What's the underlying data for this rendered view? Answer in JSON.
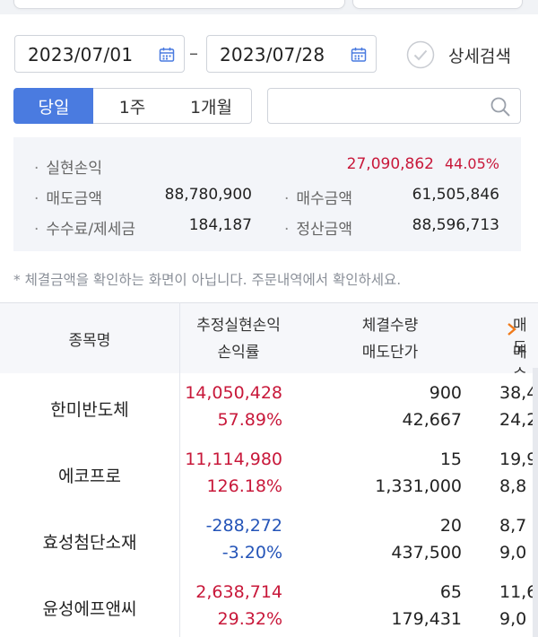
{
  "date_range": {
    "start": "2023/07/01",
    "separator": "–",
    "end": "2023/07/28"
  },
  "detail_search": {
    "label": "상세검색"
  },
  "period_tabs": [
    {
      "label": "당일",
      "active": true
    },
    {
      "label": "1주",
      "active": false
    },
    {
      "label": "1개월",
      "active": false
    }
  ],
  "search": {
    "placeholder": ""
  },
  "summary": {
    "realized_pnl": {
      "label": "실현손익",
      "value": "27,090,862",
      "rate": "44.05%"
    },
    "sell_amount": {
      "label": "매도금액",
      "value": "88,780,900"
    },
    "buy_amount": {
      "label": "매수금액",
      "value": "61,505,846"
    },
    "fee_tax": {
      "label": "수수료/제세금",
      "value": "184,187"
    },
    "settlement": {
      "label": "정산금액",
      "value": "88,596,713"
    }
  },
  "note": "* 체결금액을 확인하는 화면이 아닙니다. 주문내역에서 확인하세요.",
  "table": {
    "headers": {
      "name": "종목명",
      "pnl_line1": "추정실현손익",
      "pnl_line2": "손익률",
      "qty_line1": "체결수량",
      "qty_line2": "매도단가",
      "col4_line1": "매도",
      "col4_line2": "매수"
    },
    "rows": [
      {
        "name": "한미반도체",
        "pnl": "14,050,428",
        "rate": "57.89%",
        "qty": "900",
        "price": "42,667",
        "c4a": "38,4",
        "c4b": "24,2",
        "sign": "pos"
      },
      {
        "name": "에코프로",
        "pnl": "11,114,980",
        "rate": "126.18%",
        "qty": "15",
        "price": "1,331,000",
        "c4a": "19,9",
        "c4b": "8,8",
        "sign": "pos"
      },
      {
        "name": "효성첨단소재",
        "pnl": "-288,272",
        "rate": "-3.20%",
        "qty": "20",
        "price": "437,500",
        "c4a": "8,7",
        "c4b": "9,0",
        "sign": "neg"
      },
      {
        "name": "윤성에프앤씨",
        "pnl": "2,638,714",
        "rate": "29.32%",
        "qty": "65",
        "price": "179,431",
        "c4a": "11,6",
        "c4b": "9,0",
        "sign": "pos"
      }
    ]
  },
  "colors": {
    "accent": "#4a7be0",
    "positive": "#c8183a",
    "negative": "#2454b8",
    "arrow": "#f07a1a"
  }
}
